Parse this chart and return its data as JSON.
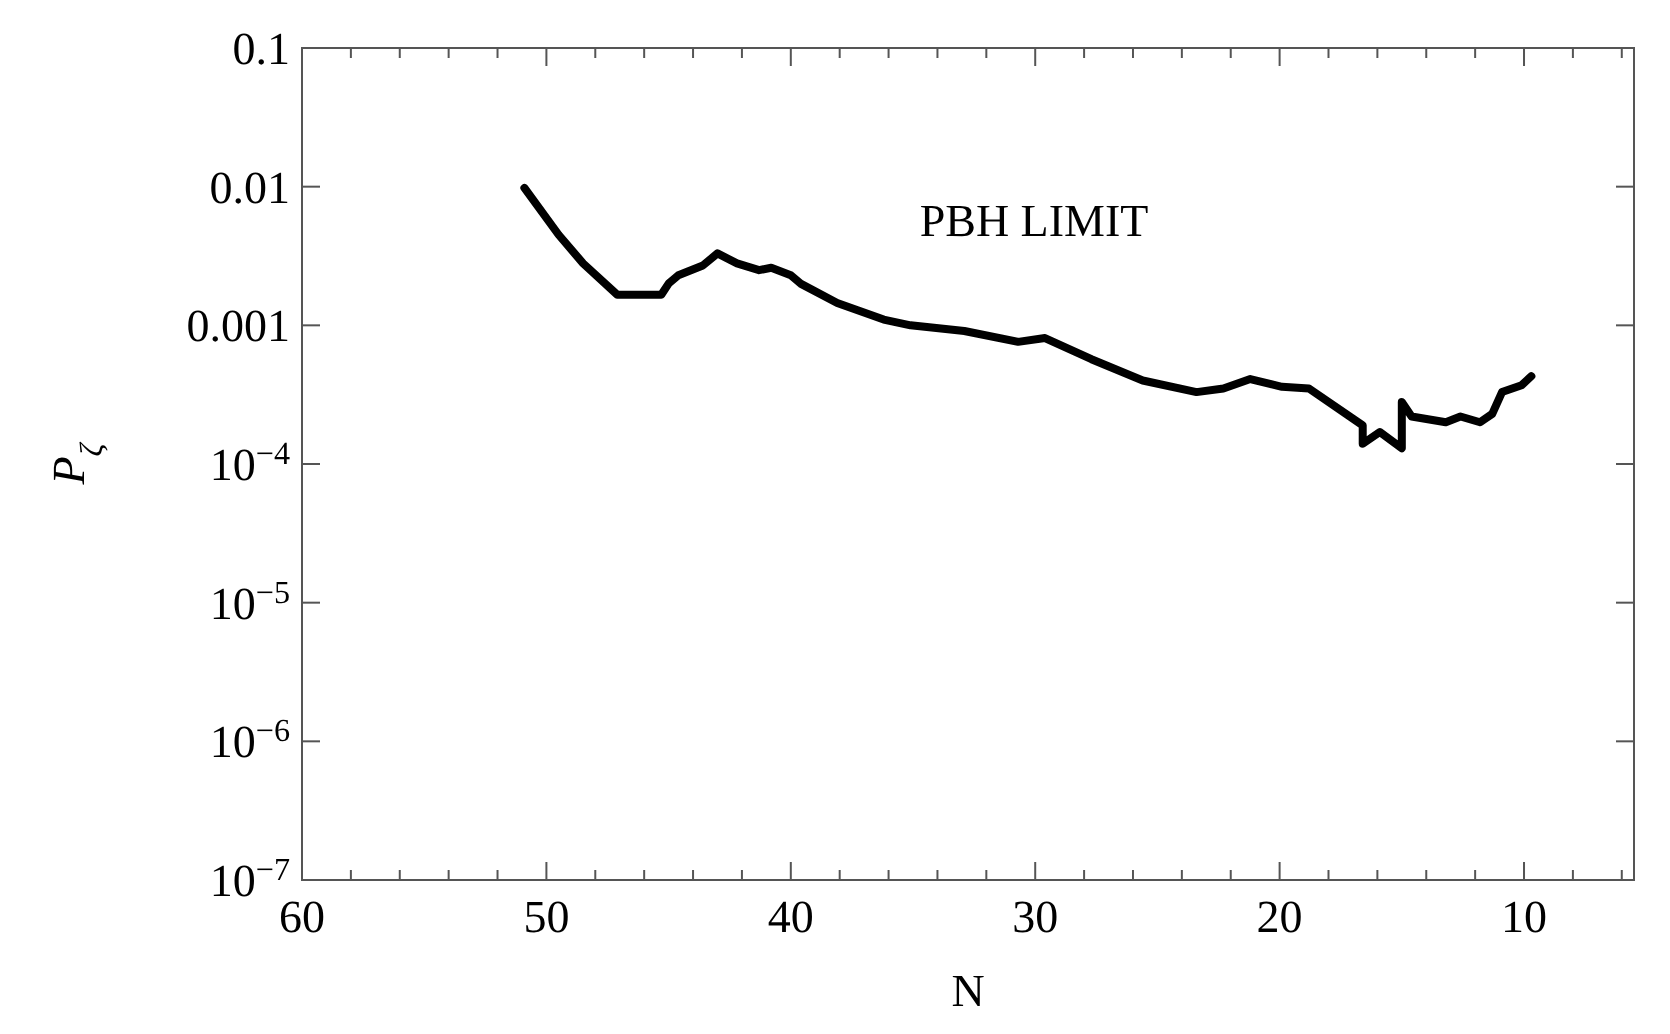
{
  "chart_data": {
    "type": "line",
    "xlabel": "N",
    "ylabel": "P$_{ζ}$",
    "log": "y",
    "grid": false,
    "marker": "none",
    "line_style": "solid",
    "xlim": [
      60,
      5.5
    ],
    "xticks": [
      60,
      {
        "value": 58,
        "label": null
      },
      {
        "value": 56,
        "label": null
      },
      {
        "value": 54,
        "label": null
      },
      {
        "value": 52,
        "label": null
      },
      50,
      {
        "value": 48,
        "label": null
      },
      {
        "value": 46,
        "label": null
      },
      {
        "value": 44,
        "label": null
      },
      {
        "value": 42,
        "label": null
      },
      40,
      {
        "value": 38,
        "label": null
      },
      {
        "value": 36,
        "label": null
      },
      {
        "value": 34,
        "label": null
      },
      {
        "value": 32,
        "label": null
      },
      30,
      {
        "value": 28,
        "label": null
      },
      {
        "value": 26,
        "label": null
      },
      {
        "value": 24,
        "label": null
      },
      {
        "value": 22,
        "label": null
      },
      20,
      {
        "value": 18,
        "label": null
      },
      {
        "value": 16,
        "label": null
      },
      {
        "value": 14,
        "label": null
      },
      {
        "value": 12,
        "label": null
      },
      10,
      {
        "value": 8,
        "label": null
      },
      {
        "value": 6,
        "label": null
      }
    ],
    "ylim": [
      1e-07,
      0.1
    ],
    "yticks": [
      {
        "value": 1e-07,
        "label": "10$^{−7}$"
      },
      {
        "value": 1e-06,
        "label": "10$^{−6}$"
      },
      {
        "value": 1e-05,
        "label": "10$^{−5}$"
      },
      {
        "value": 0.0001,
        "label": "10$^{−4}$"
      },
      0.001,
      0.01,
      0.1
    ],
    "annotations": [
      "PBH LIMIT"
    ],
    "series": [
      {
        "color": "#000000",
        "x": [
          50.9,
          49.5,
          48.5,
          47.1,
          45.3,
          45.0,
          44.6,
          43.6,
          43.0,
          42.2,
          41.3,
          40.8,
          40.0,
          39.6,
          38.1,
          36.2,
          35.1,
          32.9,
          30.7,
          29.6,
          27.7,
          25.6,
          23.4,
          22.3,
          21.2,
          19.9,
          18.8,
          16.6,
          16.6,
          15.9,
          15.0,
          15.0,
          14.6,
          13.2,
          12.6,
          11.8,
          11.3,
          10.9,
          10.1,
          9.7
        ],
        "values": [
          0.0098,
          0.0045,
          0.0028,
          0.00166,
          0.00166,
          0.002,
          0.0023,
          0.0027,
          0.0033,
          0.0028,
          0.0025,
          0.0026,
          0.0023,
          0.002,
          0.00145,
          0.0011,
          0.001,
          0.00091,
          0.00076,
          0.00081,
          0.00057,
          0.0004,
          0.00033,
          0.00035,
          0.00041,
          0.00036,
          0.00035,
          0.00019,
          0.00014,
          0.00017,
          0.00013,
          0.00028,
          0.00022,
          0.0002,
          0.00022,
          0.0002,
          0.00023,
          0.00033,
          0.00037,
          0.00043
        ]
      }
    ]
  }
}
